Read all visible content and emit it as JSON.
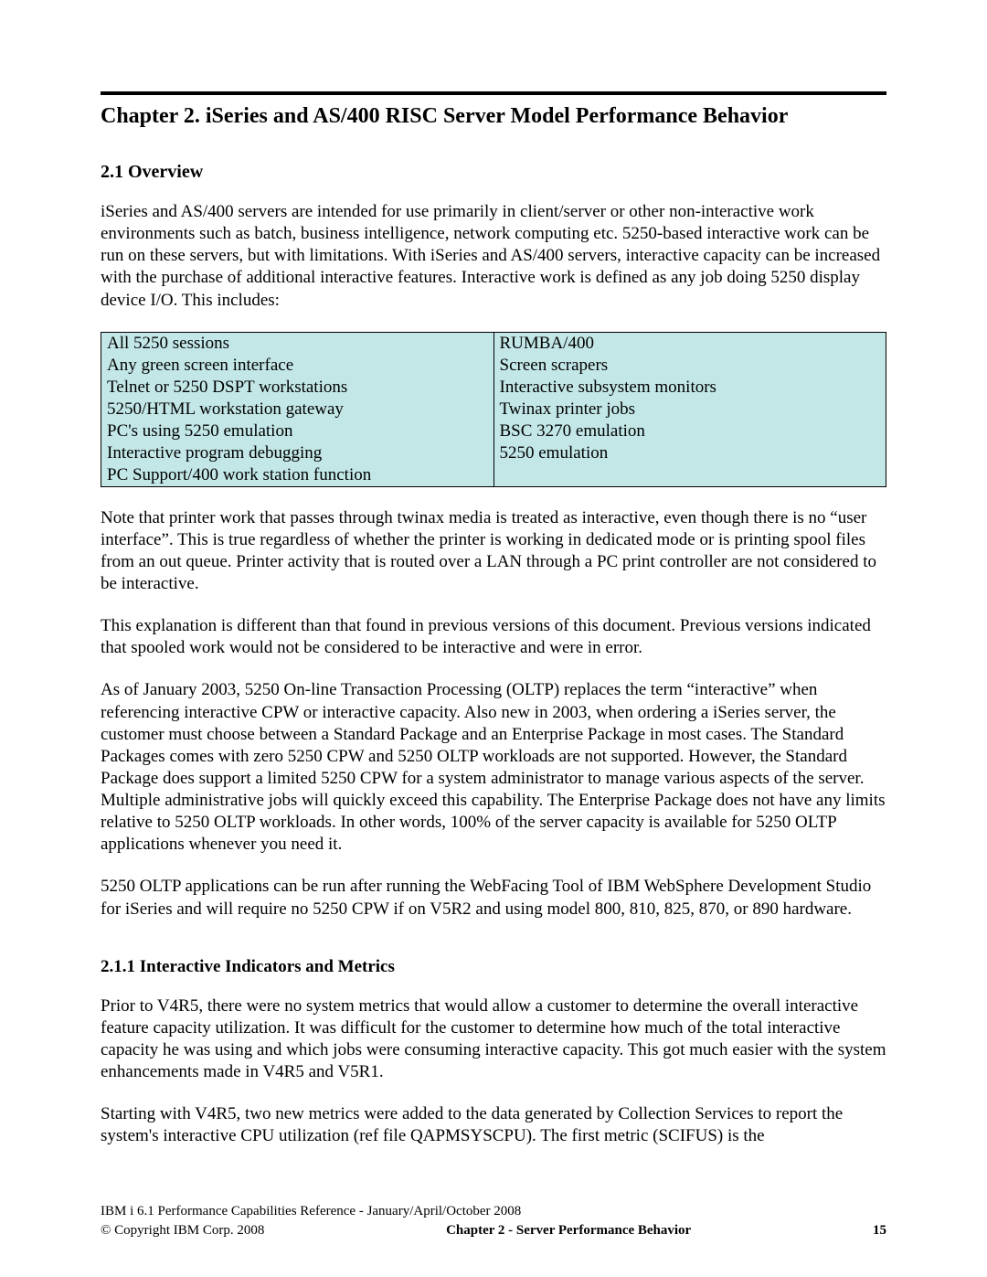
{
  "chapter_title": "Chapter 2.  iSeries and AS/400 RISC Server Model Performance Behavior",
  "section_title": "2.1  Overview",
  "paragraphs": {
    "p1": "iSeries and AS/400 servers are intended for use primarily in client/server or other non-interactive work environments such as batch, business intelligence, network computing etc. 5250-based interactive work can be run on these servers, but with limitations. With iSeries and AS/400 servers, interactive capacity can be increased with the purchase of additional interactive features.  Interactive work is defined as any job doing 5250 display device I/O.  This includes:",
    "p2": "Note that printer work that passes through twinax media is treated as interactive, even though there is no “user interface”. This is true regardless of whether the printer is working in dedicated mode or is printing spool files from an out queue. Printer activity that is routed over a LAN through a PC print controller are not considered to be interactive.",
    "p3": "This explanation is different than that found in previous versions of this document. Previous versions indicated that spooled work would not be considered to be interactive and were in error.",
    "p4": "As of January 2003, 5250 On-line Transaction Processing (OLTP) replaces the term “interactive” when referencing interactive CPW or interactive capacity. Also new in 2003, when ordering a iSeries server, the customer must choose between a Standard Package and an Enterprise Package in most cases. The Standard Packages comes with zero 5250 CPW and 5250 OLTP workloads are not supported. However, the Standard Package does support a limited 5250 CPW for a system administrator to manage various aspects of the server. Multiple administrative jobs will quickly exceed this capability. The Enterprise Package  does not have any limits relative to 5250 OLTP workloads. In other words, 100% of the server capacity is available for 5250 OLTP applications whenever you need it.",
    "p5": "5250 OLTP applications can be run after running the WebFacing Tool of IBM WebSphere Development Studio for iSeries and will require no 5250 CPW if on V5R2 and using model 800, 810, 825, 870, or 890 hardware.",
    "p6": "Prior to V4R5, there were no system metrics that would allow a customer to determine the overall interactive feature capacity utilization. It was difficult for the customer to determine how much of the total interactive capacity he was using and which jobs were consuming interactive capacity. This got much easier with the system enhancements made in V4R5 and V5R1.",
    "p7": "Starting with V4R5,  two new metrics were added to the data generated by Collection Services to report the system's interactive CPU utilization (ref file QAPMSYSCPU). The first metric (SCIFUS) is the"
  },
  "subsection_title": "2.1.1 Interactive Indicators and Metrics",
  "table": {
    "background_color": "#c3e7e7",
    "border_color": "#000000",
    "rows": [
      [
        "All 5250 sessions",
        "RUMBA/400"
      ],
      [
        "Any green screen interface",
        "Screen scrapers"
      ],
      [
        "Telnet or 5250 DSPT workstations",
        "Interactive subsystem monitors"
      ],
      [
        "5250/HTML workstation gateway",
        "Twinax printer jobs"
      ],
      [
        "PC's using 5250 emulation",
        "BSC 3270 emulation"
      ],
      [
        "Interactive program debugging",
        "5250 emulation"
      ],
      [
        "PC Support/400 work station function",
        ""
      ]
    ]
  },
  "footer": {
    "reference": "IBM i 6.1 Performance Capabilities Reference - January/April/October 2008",
    "copyright": "© Copyright IBM Corp. 2008",
    "center": "Chapter 2 - Server Performance Behavior",
    "page_number": "15"
  }
}
